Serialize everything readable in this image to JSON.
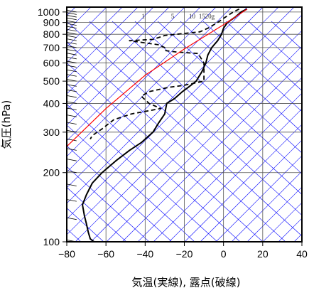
{
  "chart_data": {
    "type": "line",
    "title": "",
    "xlabel": "気温(実線), 露点(破線)",
    "ylabel": "気圧(hPa)",
    "xlim": [
      -80,
      40
    ],
    "ylim": [
      1050,
      100
    ],
    "yscale": "log",
    "x_ticks": [
      -80,
      -60,
      -40,
      -20,
      0,
      20,
      40
    ],
    "x_tick_labels": [
      "−80",
      "−60",
      "−40",
      "−20",
      "0",
      "20",
      "40"
    ],
    "y_ticks": [
      100,
      200,
      300,
      400,
      500,
      600,
      700,
      800,
      900,
      1000
    ],
    "y_tick_labels": [
      "100",
      "200",
      "300",
      "400",
      "500",
      "600",
      "700",
      "800",
      "900",
      "1000"
    ],
    "grid": true,
    "mixing_ratio_labels": [
      "1",
      "5",
      "10",
      "15",
      "20g"
    ],
    "colors": {
      "temperature": "#000000",
      "dewpoint": "#000000",
      "parcel": "#ff0000",
      "isotherm": "#0000ff",
      "dry_adiabat": "#0000ff",
      "grid": "#555555",
      "wind_barb": "#000000"
    },
    "series": [
      {
        "name": "",
        "style": "solid",
        "points": [
          [
            12,
            1030
          ],
          [
            9,
            1000
          ],
          [
            6,
            950
          ],
          [
            2,
            900
          ],
          [
            0,
            850
          ],
          [
            -1,
            800
          ],
          [
            -3,
            750
          ],
          [
            -6,
            700
          ],
          [
            -8,
            650
          ],
          [
            -9,
            600
          ],
          [
            -11,
            550
          ],
          [
            -14,
            500
          ],
          [
            -18,
            470
          ],
          [
            -21,
            450
          ],
          [
            -25,
            420
          ],
          [
            -29,
            400
          ],
          [
            -30,
            360
          ],
          [
            -33,
            330
          ],
          [
            -36,
            300
          ],
          [
            -42,
            270
          ],
          [
            -48,
            250
          ],
          [
            -55,
            225
          ],
          [
            -62,
            200
          ],
          [
            -67,
            180
          ],
          [
            -70,
            160
          ],
          [
            -72,
            145
          ],
          [
            -71,
            130
          ],
          [
            -70,
            120
          ],
          [
            -69,
            110
          ],
          [
            -68,
            103
          ],
          [
            -66,
            100
          ]
        ]
      },
      {
        "name": "",
        "style": "dashed",
        "points": [
          [
            8,
            1030
          ],
          [
            5,
            1000
          ],
          [
            1,
            950
          ],
          [
            -3,
            900
          ],
          [
            -8,
            850
          ],
          [
            -12,
            820
          ],
          [
            -30,
            790
          ],
          [
            -36,
            760
          ],
          [
            -48,
            750
          ],
          [
            -33,
            720
          ],
          [
            -30,
            700
          ],
          [
            -30,
            680
          ],
          [
            -24,
            670
          ],
          [
            -13,
            660
          ],
          [
            -10,
            600
          ],
          [
            -10,
            500
          ],
          [
            -20,
            480
          ],
          [
            -28,
            470
          ],
          [
            -38,
            450
          ],
          [
            -42,
            430
          ],
          [
            -38,
            400
          ],
          [
            -32,
            380
          ],
          [
            -47,
            360
          ],
          [
            -56,
            340
          ],
          [
            -62,
            310
          ],
          [
            -67,
            290
          ],
          [
            -68,
            280
          ]
        ]
      },
      {
        "name": "",
        "style": "solid-red",
        "points": [
          [
            12,
            1030
          ],
          [
            6,
            950
          ],
          [
            0,
            880
          ],
          [
            -10,
            780
          ],
          [
            -20,
            690
          ],
          [
            -40,
            530
          ],
          [
            -60,
            380
          ],
          [
            -80,
            260
          ],
          [
            -84,
            230
          ]
        ]
      }
    ],
    "wind_barb_pressures": [
      1000,
      975,
      950,
      925,
      900,
      875,
      850,
      825,
      800,
      775,
      750,
      725,
      700,
      675,
      650,
      625,
      600,
      575,
      550,
      525,
      500,
      475,
      450,
      425,
      400,
      375,
      350,
      325,
      300,
      275,
      250,
      225,
      200,
      175,
      150,
      125,
      100
    ]
  }
}
